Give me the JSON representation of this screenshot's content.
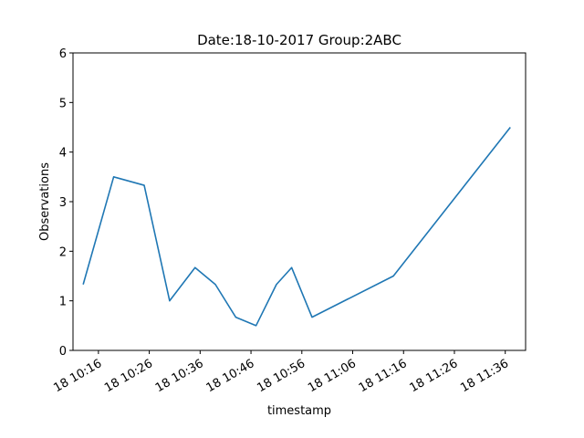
{
  "chart_data": {
    "type": "line",
    "title": "Date:18-10-2017  Group:2ABC",
    "xlabel": "timestamp",
    "ylabel": "Observations",
    "ylim": [
      0,
      6
    ],
    "yticks": [
      0,
      1,
      2,
      3,
      4,
      5,
      6
    ],
    "xlim": [
      "2017-10-18 10:11",
      "2017-10-18 11:40"
    ],
    "xticks": [
      "2017-10-18 10:16",
      "2017-10-18 10:26",
      "2017-10-18 10:36",
      "2017-10-18 10:46",
      "2017-10-18 10:56",
      "2017-10-18 11:06",
      "2017-10-18 11:16",
      "2017-10-18 11:26",
      "2017-10-18 11:36"
    ],
    "xtick_labels": [
      "18 10:16",
      "18 10:26",
      "18 10:36",
      "18 10:46",
      "18 10:56",
      "18 11:06",
      "18 11:16",
      "18 11:26",
      "18 11:36"
    ],
    "grid": false,
    "series_color": "#1f77b4",
    "series": [
      {
        "x": [
          "2017-10-18 10:13",
          "2017-10-18 10:19",
          "2017-10-18 10:25",
          "2017-10-18 10:30",
          "2017-10-18 10:35",
          "2017-10-18 10:39",
          "2017-10-18 10:43",
          "2017-10-18 10:47",
          "2017-10-18 10:51",
          "2017-10-18 10:54",
          "2017-10-18 10:58",
          "2017-10-18 11:14",
          "2017-10-18 11:37"
        ],
        "y": [
          1.33,
          3.5,
          3.33,
          1.0,
          1.67,
          1.33,
          0.67,
          0.5,
          1.33,
          1.67,
          0.67,
          1.5,
          4.5
        ]
      }
    ]
  }
}
